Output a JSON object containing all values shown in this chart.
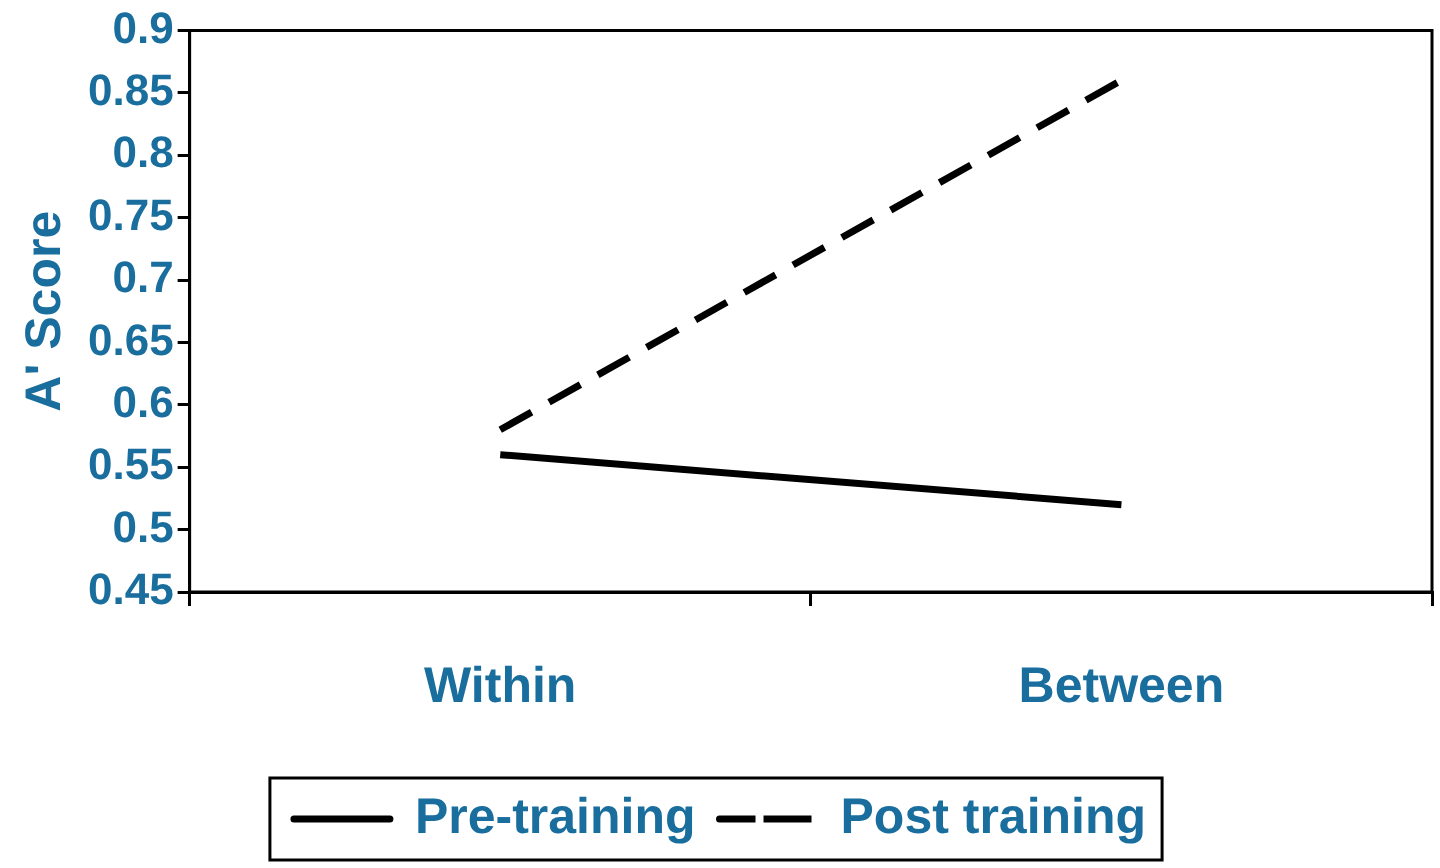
{
  "chart_data": {
    "type": "line",
    "ylabel": "A' Score",
    "categories": [
      "Within",
      "Between"
    ],
    "series": [
      {
        "name": "Pre-training",
        "color": "#000000",
        "values": [
          0.56,
          0.52
        ],
        "line_style": "solid"
      },
      {
        "name": "Post training",
        "color": "#000000",
        "values": [
          0.58,
          0.86
        ],
        "line_style": "dashed"
      }
    ],
    "ylim": [
      0.45,
      0.9
    ],
    "yticks": [
      0.45,
      0.5,
      0.55,
      0.6,
      0.65,
      0.7,
      0.75,
      0.8,
      0.85,
      0.9
    ],
    "grid": false,
    "legend": "bottom",
    "marker": "none"
  }
}
